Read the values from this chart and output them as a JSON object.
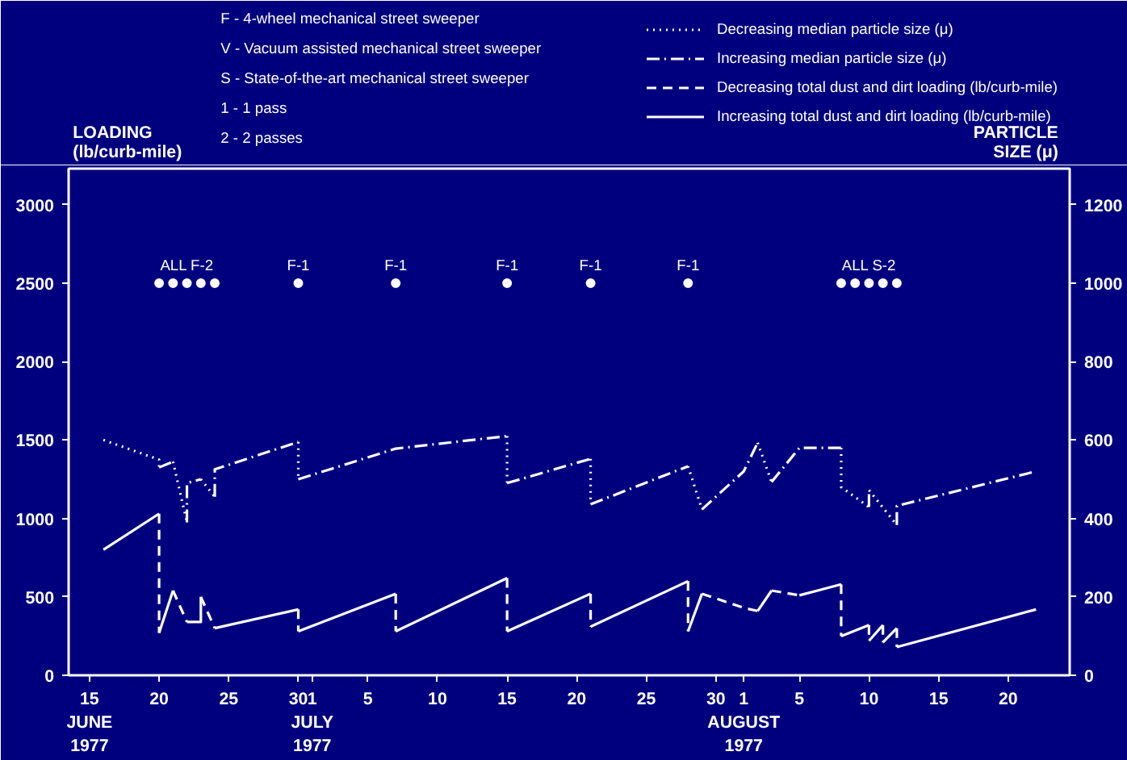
{
  "chart_data": {
    "type": "line",
    "ylabel": "LOADING\n(lb/curb-mile)",
    "y2label": "PARTICLE\nSIZE (μ)",
    "annotations": [
      "F - 4-wheel mechanical street sweeper",
      "V - Vacuum assisted mechanical street sweeper",
      "S - State-of-the-art mechanical street sweeper",
      "1 - 1 pass",
      "2 - 2 passes",
      {
        "text": "ALL F-2",
        "x": "1977-06-22",
        "y": 2500
      },
      {
        "text": "F-1",
        "x": "1977-06-30",
        "y": 2500
      },
      {
        "text": "F-1",
        "x": "1977-07-07",
        "y": 2500
      },
      {
        "text": "F-1",
        "x": "1977-07-15",
        "y": 2500
      },
      {
        "text": "F-1",
        "x": "1977-07-21",
        "y": 2500
      },
      {
        "text": "F-1",
        "x": "1977-07-28",
        "y": 2500
      },
      {
        "text": "ALL S-2",
        "x": "1977-08-10",
        "y": 2500
      }
    ],
    "xlim": [
      "1977-06-13T12:00",
      "1977-08-24T10:00"
    ],
    "xticks": [
      {
        "value": "1977-06-15",
        "label": "15\nJUNE\n1977"
      },
      {
        "value": "1977-06-20",
        "label": "20"
      },
      {
        "value": "1977-06-25",
        "label": "25"
      },
      {
        "value": "1977-06-30",
        "label": "30"
      },
      {
        "value": "1977-07-01",
        "label": "1\nJULY\n1977"
      },
      {
        "value": "1977-07-05",
        "label": "5"
      },
      {
        "value": "1977-07-10",
        "label": "10"
      },
      {
        "value": "1977-07-15",
        "label": "15"
      },
      {
        "value": "1977-07-20",
        "label": "20"
      },
      {
        "value": "1977-07-25",
        "label": "25"
      },
      {
        "value": "1977-07-30",
        "label": "30"
      },
      {
        "value": "1977-08-01",
        "label": "1\nAUGUST\n1977"
      },
      {
        "value": "1977-08-05",
        "label": "5"
      },
      {
        "value": "1977-08-10",
        "label": "10"
      },
      {
        "value": "1977-08-15",
        "label": "15"
      },
      {
        "value": "1977-08-20",
        "label": "20"
      }
    ],
    "ylim": [
      0,
      3230
    ],
    "yticks": [
      0,
      500,
      1000,
      1500,
      2000,
      2500,
      3000
    ],
    "y2lim": [
      0,
      1292
    ],
    "y2ticks": [
      0,
      200,
      400,
      600,
      800,
      1000,
      1200
    ],
    "grid": false,
    "legend": "top right",
    "series": [
      {
        "name": "Decreasing median particle size (μ)",
        "axis": "y2",
        "color": "#ffffff",
        "line_style": "dotted",
        "marker": "none",
        "x": [
          "1977-06-16",
          "1977-06-20",
          "1977-06-20",
          null,
          "1977-06-21",
          "1977-06-22",
          null,
          "1977-06-23",
          "1977-06-24",
          null,
          "1977-06-30",
          "1977-06-30",
          null,
          "1977-07-15",
          "1977-07-15",
          null,
          "1977-07-21",
          "1977-07-21",
          null,
          "1977-07-28",
          "1977-07-29",
          null,
          "1977-08-02",
          "1977-08-03",
          null,
          "1977-08-08",
          "1977-08-08",
          "1977-08-10",
          null,
          "1977-08-10",
          "1977-08-12"
        ],
        "values": [
          600,
          550,
          530,
          null,
          545,
          390,
          null,
          500,
          455,
          null,
          595,
          500,
          null,
          610,
          490,
          null,
          552,
          436,
          null,
          533,
          423,
          null,
          593,
          493,
          null,
          580,
          480,
          429,
          null,
          472,
          383
        ]
      },
      {
        "name": "Increasing median particle size (μ)",
        "axis": "y2",
        "color": "#fefefe",
        "line_style": "dashdot",
        "marker": "none",
        "x": [
          "1977-06-20",
          "1977-06-21",
          null,
          "1977-06-22",
          "1977-06-22",
          "1977-06-23",
          null,
          "1977-06-24",
          "1977-06-24",
          "1977-06-30",
          null,
          "1977-06-30",
          "1977-07-07",
          "1977-07-15",
          null,
          "1977-07-15",
          "1977-07-21",
          null,
          "1977-07-21",
          "1977-07-28",
          null,
          "1977-07-29",
          "1977-08-01",
          "1977-08-02",
          null,
          "1977-08-03",
          "1977-08-05",
          "1977-08-08",
          null,
          "1977-08-10",
          "1977-08-10",
          null,
          "1977-08-12",
          "1977-08-12",
          "1977-08-22"
        ],
        "values": [
          530,
          545,
          null,
          390,
          490,
          500,
          null,
          455,
          525,
          595,
          null,
          500,
          578,
          610,
          null,
          490,
          552,
          null,
          436,
          533,
          null,
          423,
          520,
          593,
          null,
          493,
          580,
          580,
          null,
          429,
          472,
          null,
          383,
          432,
          520
        ]
      },
      {
        "name": "Decreasing total dust and dirt loading (lb/curb-mile)",
        "color": "#fdfdfd",
        "line_style": "dashed",
        "marker": "none",
        "x": [
          "1977-06-20",
          "1977-06-20",
          null,
          "1977-06-21",
          "1977-06-22",
          null,
          "1977-06-23",
          "1977-06-24",
          null,
          "1977-06-30",
          "1977-06-30",
          null,
          "1977-07-07",
          "1977-07-07",
          null,
          "1977-07-15",
          "1977-07-15",
          null,
          "1977-07-21",
          "1977-07-21",
          null,
          "1977-07-28",
          "1977-07-28",
          null,
          "1977-07-29",
          "1977-08-01",
          "1977-08-02",
          null,
          "1977-08-03",
          "1977-08-05",
          null,
          "1977-08-08",
          "1977-08-08",
          null,
          "1977-08-10",
          "1977-08-10",
          null,
          "1977-08-11",
          "1977-08-11",
          null,
          "1977-08-12",
          "1977-08-12"
        ],
        "values": [
          1030,
          270,
          null,
          540,
          340,
          null,
          500,
          300,
          null,
          420,
          280,
          null,
          520,
          280,
          null,
          620,
          280,
          null,
          520,
          310,
          null,
          600,
          280,
          null,
          520,
          430,
          410,
          null,
          540,
          510,
          null,
          580,
          250,
          null,
          320,
          220,
          null,
          320,
          210,
          null,
          300,
          180
        ]
      },
      {
        "name": "Increasing total dust and dirt loading (lb/curb-mile)",
        "color": "#fcfcfc",
        "line_style": "solid",
        "marker": "none",
        "x": [
          "1977-06-16",
          "1977-06-20",
          null,
          "1977-06-20",
          "1977-06-21",
          null,
          "1977-06-22",
          "1977-06-23",
          "1977-06-23",
          null,
          "1977-06-24",
          "1977-06-30",
          null,
          "1977-06-30",
          "1977-07-07",
          null,
          "1977-07-07",
          "1977-07-15",
          null,
          "1977-07-15",
          "1977-07-21",
          null,
          "1977-07-21",
          "1977-07-28",
          null,
          "1977-07-28",
          "1977-07-29",
          null,
          "1977-08-02",
          "1977-08-03",
          null,
          "1977-08-05",
          "1977-08-08",
          null,
          "1977-08-08",
          "1977-08-10",
          null,
          "1977-08-10",
          "1977-08-11",
          null,
          "1977-08-11",
          "1977-08-12",
          null,
          "1977-08-12",
          "1977-08-22"
        ],
        "values": [
          800,
          1030,
          null,
          270,
          540,
          null,
          340,
          340,
          500,
          null,
          300,
          420,
          null,
          280,
          520,
          null,
          280,
          620,
          null,
          280,
          520,
          null,
          310,
          600,
          null,
          280,
          520,
          null,
          410,
          540,
          null,
          510,
          580,
          null,
          250,
          320,
          null,
          220,
          320,
          null,
          210,
          300,
          null,
          180,
          420
        ]
      },
      {
        "type": "scatter",
        "color": "#fafafa",
        "marker": "circle",
        "x": [
          "1977-06-20",
          "1977-06-21",
          "1977-06-22",
          "1977-06-23",
          "1977-06-24",
          "1977-06-30",
          "1977-07-07",
          "1977-07-15",
          "1977-07-21",
          "1977-07-28",
          "1977-08-08",
          "1977-08-09",
          "1977-08-10",
          "1977-08-11",
          "1977-08-12"
        ],
        "values": [
          2500,
          2500,
          2500,
          2500,
          2500,
          2500,
          2500,
          2500,
          2500,
          2500,
          2500,
          2500,
          2500,
          2500,
          2500
        ]
      }
    ]
  }
}
